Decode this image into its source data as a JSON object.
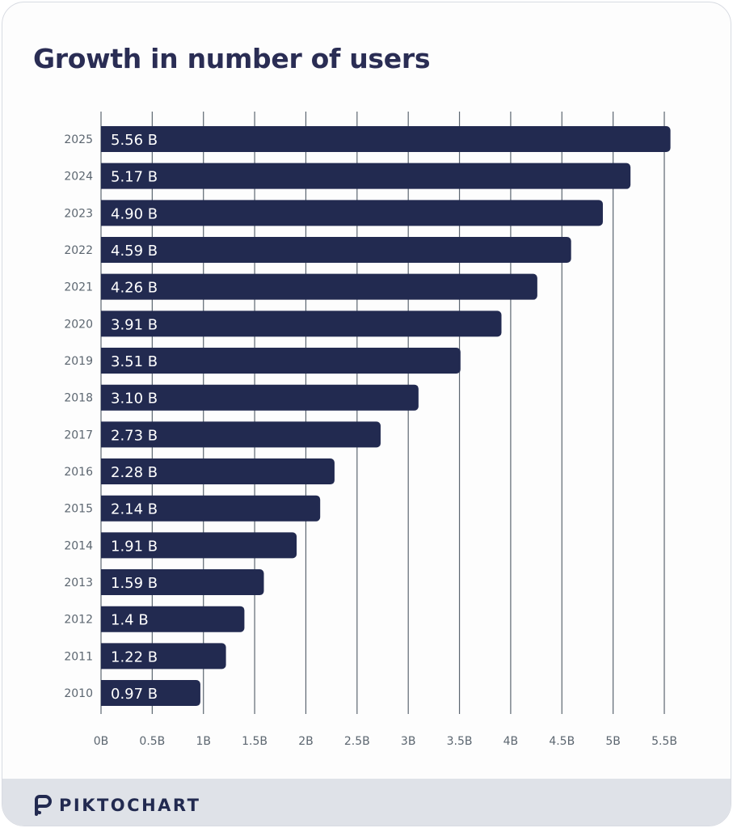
{
  "chart_data": {
    "type": "bar",
    "orientation": "horizontal",
    "title": "Growth in number of users",
    "categories": [
      "2025",
      "2024",
      "2023",
      "2022",
      "2021",
      "2020",
      "2019",
      "2018",
      "2017",
      "2016",
      "2015",
      "2014",
      "2013",
      "2012",
      "2011",
      "2010"
    ],
    "values": [
      5.56,
      5.17,
      4.9,
      4.59,
      4.26,
      3.91,
      3.51,
      3.1,
      2.73,
      2.28,
      2.14,
      1.91,
      1.59,
      1.4,
      1.22,
      0.97
    ],
    "data_labels": [
      "5.56 B",
      "5.17 B",
      "4.90 B",
      "4.59 B",
      "4.26 B",
      "3.91 B",
      "3.51 B",
      "3.10 B",
      "2.73 B",
      "2.28 B",
      "2.14 B",
      "1.91 B",
      "1.59 B",
      "1.4 B",
      "1.22 B",
      "0.97 B"
    ],
    "x_ticks": [
      0,
      0.5,
      1,
      1.5,
      2,
      2.5,
      3,
      3.5,
      4,
      4.5,
      5,
      5.5
    ],
    "x_tick_labels": [
      "0B",
      "0.5B",
      "1B",
      "1.5B",
      "2B",
      "2.5B",
      "3B",
      "3.5B",
      "4B",
      "4.5B",
      "5B",
      "5.5B"
    ],
    "xlim": [
      0,
      5.5
    ],
    "xlabel": "",
    "ylabel": "",
    "grid": "vertical",
    "bar_color": "#222a50",
    "grid_color": "#5c6670"
  },
  "footer": {
    "brand": "PIKTOCHART"
  }
}
